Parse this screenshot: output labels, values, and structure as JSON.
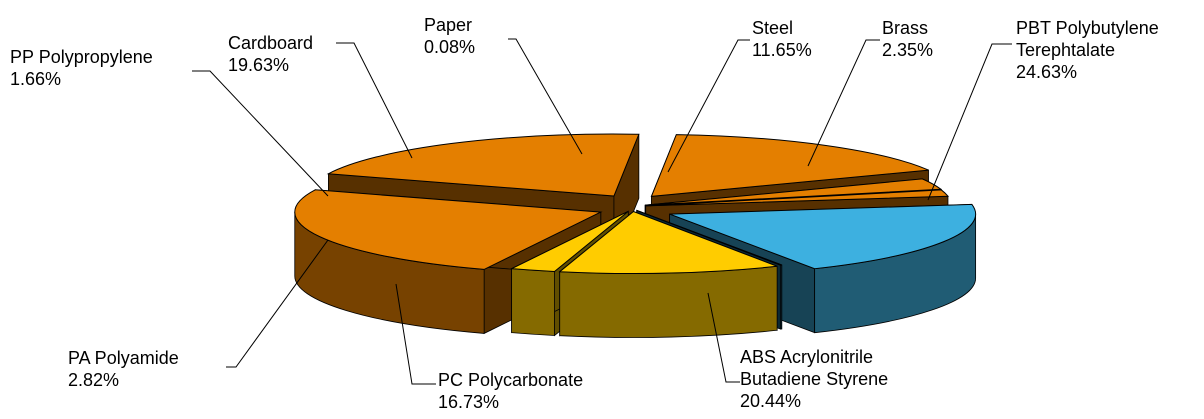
{
  "chart_data": {
    "type": "pie",
    "style": "3d-exploded",
    "slices": [
      {
        "label_lines": [
          "Steel"
        ],
        "value": 11.65,
        "value_text": "11.65%",
        "color": "#FFCC00"
      },
      {
        "label_lines": [
          "Brass"
        ],
        "value": 2.35,
        "value_text": "2.35%",
        "color": "#FFCC00"
      },
      {
        "label_lines": [
          "PBT Polybutylene",
          "Terephtalate"
        ],
        "value": 24.63,
        "value_text": "24.63%",
        "color": "#E47F00"
      },
      {
        "label_lines": [
          "ABS Acrylonitrile",
          "Butadiene Styrene"
        ],
        "value": 20.44,
        "value_text": "20.44%",
        "color": "#E47F00"
      },
      {
        "label_lines": [
          "PC Polycarbonate"
        ],
        "value": 16.73,
        "value_text": "16.73%",
        "color": "#E47F00"
      },
      {
        "label_lines": [
          "PA Polyamide"
        ],
        "value": 2.82,
        "value_text": "2.82%",
        "color": "#E47F00"
      },
      {
        "label_lines": [
          "PP Polypropylene"
        ],
        "value": 1.66,
        "value_text": "1.66%",
        "color": "#E47F00"
      },
      {
        "label_lines": [
          "Cardboard"
        ],
        "value": 19.63,
        "value_text": "19.63%",
        "color": "#3DB0E0"
      },
      {
        "label_lines": [
          "Paper"
        ],
        "value": 0.08,
        "value_text": "0.08%",
        "color": "#1F6E8C"
      }
    ]
  }
}
